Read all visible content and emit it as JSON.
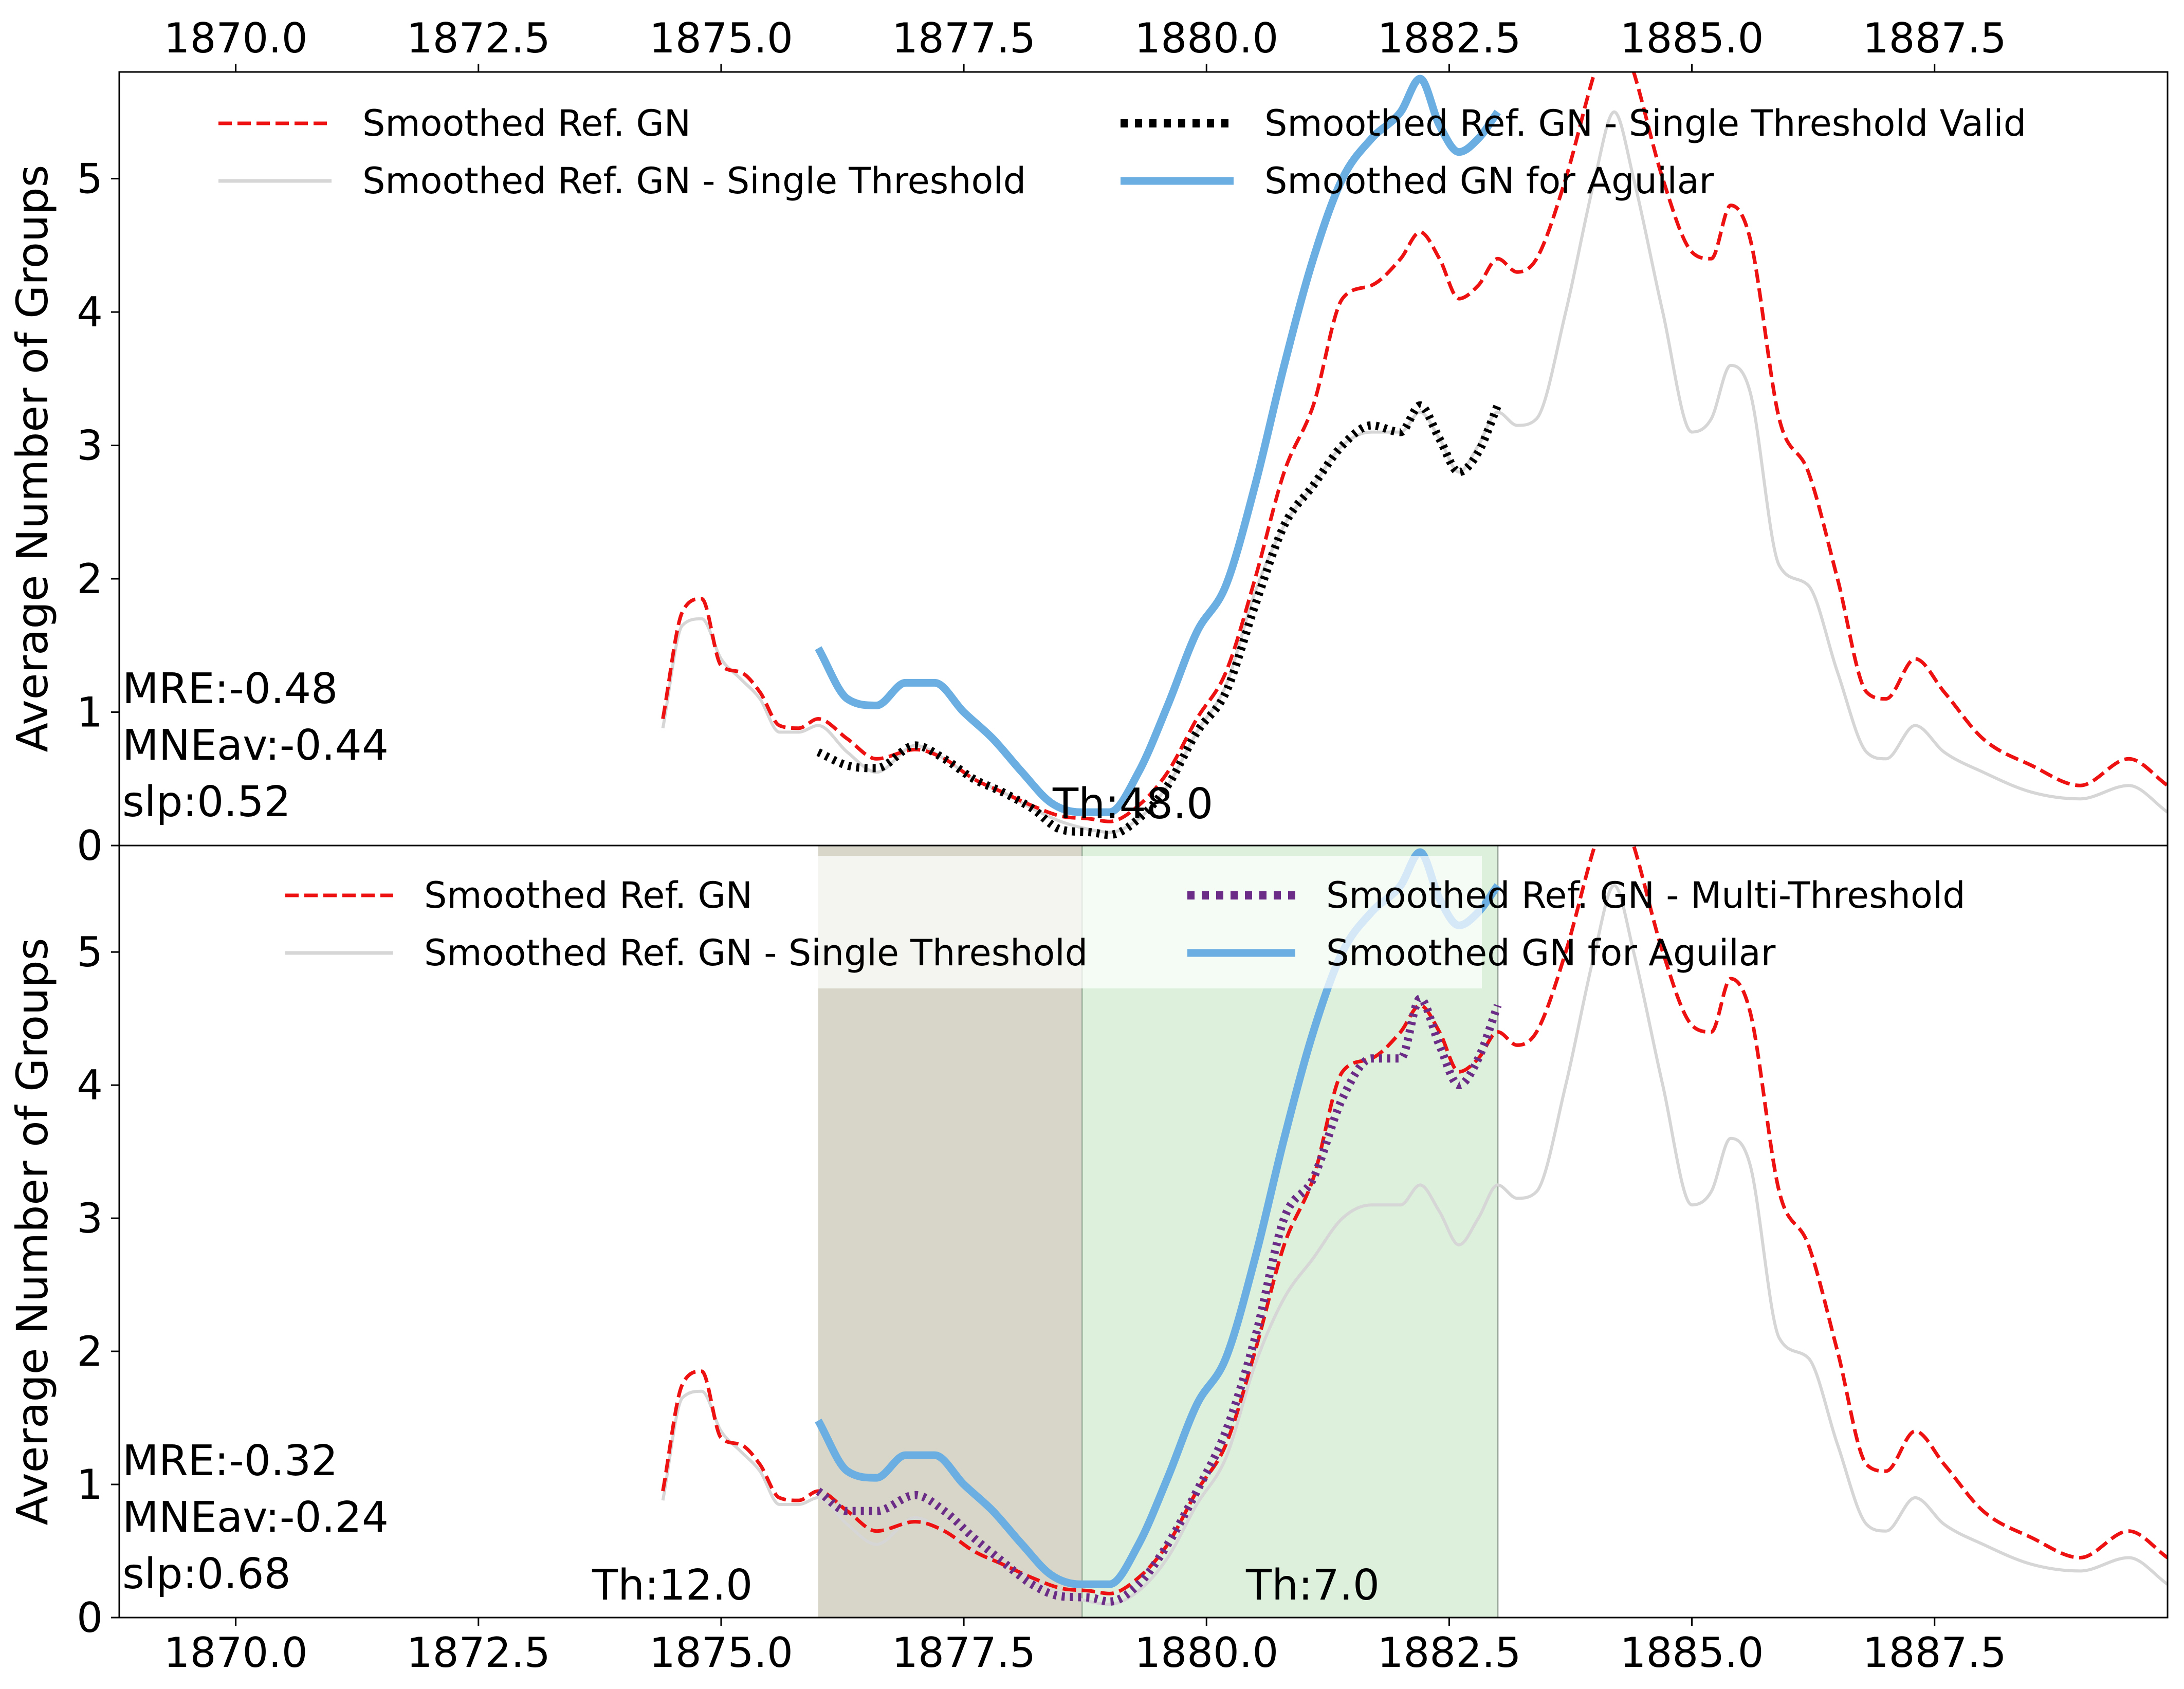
{
  "chart_data": [
    {
      "type": "line",
      "ylabel": "Average Number of Groups",
      "xlim": [
        1868.8,
        1889.9
      ],
      "ylim": [
        0,
        5.8
      ],
      "x_ticks": [
        "1870.0",
        "1872.5",
        "1875.0",
        "1877.5",
        "1880.0",
        "1882.5",
        "1885.0",
        "1887.5"
      ],
      "y_ticks": [
        "0",
        "1",
        "2",
        "3",
        "4",
        "5"
      ],
      "x_tick_position": "top",
      "grid": false,
      "legend": {
        "placement": "top",
        "entries": [
          {
            "label": "Smoothed Ref. GN",
            "color": "#ee1111",
            "style": "dashed"
          },
          {
            "label": "Smoothed Ref. GN - Single Threshold",
            "color": "#d6d6d6",
            "style": "solid"
          },
          {
            "label": "Smoothed Ref. GN - Single Threshold Valid",
            "color": "#000000",
            "style": "dotted"
          },
          {
            "label": "Smoothed GN for Aguilar",
            "color": "#6aaee2",
            "style": "solid"
          }
        ]
      },
      "annotations": [
        {
          "text": "MRE:-0.48"
        },
        {
          "text": "MNEav:-0.44"
        },
        {
          "text": "slp:0.52"
        },
        {
          "text": "Th:48.0",
          "x": 1878.7
        }
      ],
      "shaded_regions": [],
      "series": [
        {
          "name": "Smoothed Ref. GN",
          "color": "#ee1111",
          "style": "dashed",
          "x": [
            1874.4,
            1874.6,
            1874.8,
            1875.0,
            1875.2,
            1875.4,
            1875.6,
            1875.8,
            1876.0,
            1876.3,
            1876.6,
            1877.0,
            1877.3,
            1877.6,
            1877.9,
            1878.2,
            1878.5,
            1878.8,
            1879.0,
            1879.3,
            1879.6,
            1879.9,
            1880.2,
            1880.5,
            1880.8,
            1881.1,
            1881.4,
            1881.7,
            1882.0,
            1882.2,
            1882.4,
            1882.6,
            1882.8,
            1883.0,
            1883.2,
            1883.4,
            1883.7,
            1884.0,
            1884.2,
            1884.4,
            1884.7,
            1885.0,
            1885.2,
            1885.4,
            1885.6,
            1885.9,
            1886.2,
            1886.5,
            1886.8,
            1887.0,
            1887.3,
            1887.6,
            1888.0,
            1888.5,
            1889.0,
            1889.5,
            1889.9
          ],
          "y": [
            0.95,
            1.75,
            1.85,
            1.35,
            1.3,
            1.15,
            0.9,
            0.88,
            0.95,
            0.8,
            0.65,
            0.72,
            0.65,
            0.5,
            0.4,
            0.3,
            0.22,
            0.2,
            0.18,
            0.3,
            0.55,
            0.95,
            1.3,
            2.0,
            2.8,
            3.3,
            4.1,
            4.2,
            4.4,
            4.6,
            4.4,
            4.1,
            4.2,
            4.4,
            4.3,
            4.4,
            5.0,
            5.8,
            6.2,
            5.8,
            5.0,
            4.45,
            4.4,
            4.8,
            4.55,
            3.2,
            2.8,
            2.0,
            1.15,
            1.1,
            1.4,
            1.15,
            0.8,
            0.6,
            0.45,
            0.65,
            0.45
          ]
        },
        {
          "name": "Smoothed Ref. GN - Single Threshold",
          "color": "#d6d6d6",
          "style": "solid",
          "x": [
            1874.4,
            1874.6,
            1874.8,
            1875.0,
            1875.2,
            1875.4,
            1875.6,
            1875.8,
            1876.0,
            1876.3,
            1876.6,
            1877.0,
            1877.3,
            1877.6,
            1877.9,
            1878.2,
            1878.5,
            1878.8,
            1879.0,
            1879.3,
            1879.6,
            1879.9,
            1880.2,
            1880.5,
            1880.8,
            1881.1,
            1881.4,
            1881.7,
            1882.0,
            1882.2,
            1882.4,
            1882.6,
            1882.8,
            1883.0,
            1883.2,
            1883.4,
            1883.7,
            1884.0,
            1884.2,
            1884.4,
            1884.7,
            1885.0,
            1885.2,
            1885.4,
            1885.6,
            1885.9,
            1886.2,
            1886.5,
            1886.8,
            1887.0,
            1887.3,
            1887.6,
            1888.0,
            1888.5,
            1889.0,
            1889.5,
            1889.9
          ],
          "y": [
            0.88,
            1.65,
            1.7,
            1.4,
            1.25,
            1.1,
            0.85,
            0.85,
            0.9,
            0.7,
            0.55,
            0.75,
            0.65,
            0.5,
            0.4,
            0.28,
            0.18,
            0.12,
            0.1,
            0.2,
            0.45,
            0.85,
            1.2,
            1.9,
            2.4,
            2.7,
            3.0,
            3.1,
            3.1,
            3.25,
            3.05,
            2.8,
            3.0,
            3.25,
            3.15,
            3.2,
            4.0,
            5.0,
            5.5,
            5.0,
            4.0,
            3.1,
            3.2,
            3.6,
            3.4,
            2.1,
            1.95,
            1.3,
            0.7,
            0.65,
            0.9,
            0.7,
            0.55,
            0.4,
            0.35,
            0.45,
            0.25
          ]
        },
        {
          "name": "Smoothed Ref. GN - Single Threshold Valid",
          "color": "#000000",
          "style": "dotted",
          "x": [
            1876.0,
            1876.3,
            1876.6,
            1877.0,
            1877.3,
            1877.6,
            1877.9,
            1878.2,
            1878.5,
            1878.8,
            1879.0,
            1879.3,
            1879.6,
            1879.9,
            1880.2,
            1880.5,
            1880.8,
            1881.1,
            1881.4,
            1881.7,
            1882.0,
            1882.2,
            1882.4,
            1882.6,
            1882.8,
            1883.0
          ],
          "y": [
            0.7,
            0.6,
            0.58,
            0.75,
            0.65,
            0.5,
            0.4,
            0.28,
            0.12,
            0.1,
            0.08,
            0.2,
            0.45,
            0.85,
            1.15,
            1.8,
            2.4,
            2.7,
            3.0,
            3.15,
            3.1,
            3.3,
            3.05,
            2.8,
            2.95,
            3.3
          ]
        },
        {
          "name": "Smoothed GN for Aguilar",
          "color": "#6aaee2",
          "style": "solid",
          "x": [
            1876.0,
            1876.3,
            1876.6,
            1876.9,
            1877.2,
            1877.5,
            1877.8,
            1878.1,
            1878.4,
            1878.7,
            1879.0,
            1879.3,
            1879.6,
            1879.9,
            1880.2,
            1880.5,
            1880.8,
            1881.1,
            1881.4,
            1881.7,
            1882.0,
            1882.2,
            1882.4,
            1882.6,
            1882.8,
            1883.0
          ],
          "y": [
            1.48,
            1.1,
            1.05,
            1.22,
            1.22,
            1.0,
            0.8,
            0.55,
            0.32,
            0.25,
            0.25,
            0.55,
            1.05,
            1.6,
            1.95,
            2.7,
            3.6,
            4.4,
            5.0,
            5.3,
            5.5,
            5.75,
            5.4,
            5.2,
            5.3,
            5.5
          ]
        }
      ]
    },
    {
      "type": "line",
      "ylabel": "Average Number of Groups",
      "xlim": [
        1868.8,
        1889.9
      ],
      "ylim": [
        0,
        5.8
      ],
      "x_ticks": [
        "1870.0",
        "1872.5",
        "1875.0",
        "1877.5",
        "1880.0",
        "1882.5",
        "1885.0",
        "1887.5"
      ],
      "y_ticks": [
        "0",
        "1",
        "2",
        "3",
        "4",
        "5"
      ],
      "x_tick_position": "bottom",
      "grid": false,
      "legend": {
        "placement": "top",
        "entries": [
          {
            "label": "Smoothed Ref. GN",
            "color": "#ee1111",
            "style": "dashed"
          },
          {
            "label": "Smoothed Ref. GN - Single Threshold",
            "color": "#d6d6d6",
            "style": "solid"
          },
          {
            "label": "Smoothed Ref. GN - Multi-Threshold",
            "color": "#6a2c86",
            "style": "dotted"
          },
          {
            "label": "Smoothed GN for Aguilar",
            "color": "#6aaee2",
            "style": "solid"
          }
        ]
      },
      "annotations": [
        {
          "text": "MRE:-0.32"
        },
        {
          "text": "MNEav:-0.24"
        },
        {
          "text": "slp:0.68"
        },
        {
          "text": "Th:12.0",
          "x": 1873.3
        },
        {
          "text": "Th:7.0",
          "x": 1881.3
        }
      ],
      "shaded_regions": [
        {
          "x_start": 1876.0,
          "x_end": 1878.72,
          "color": "#b8b49a"
        },
        {
          "x_start": 1878.72,
          "x_end": 1883.0,
          "color": "#bfe3bf"
        }
      ],
      "series": [
        {
          "name": "Smoothed Ref. GN",
          "color": "#ee1111",
          "style": "dashed",
          "x": [
            1874.4,
            1874.6,
            1874.8,
            1875.0,
            1875.2,
            1875.4,
            1875.6,
            1875.8,
            1876.0,
            1876.3,
            1876.6,
            1877.0,
            1877.3,
            1877.6,
            1877.9,
            1878.2,
            1878.5,
            1878.8,
            1879.0,
            1879.3,
            1879.6,
            1879.9,
            1880.2,
            1880.5,
            1880.8,
            1881.1,
            1881.4,
            1881.7,
            1882.0,
            1882.2,
            1882.4,
            1882.6,
            1882.8,
            1883.0,
            1883.2,
            1883.4,
            1883.7,
            1884.0,
            1884.2,
            1884.4,
            1884.7,
            1885.0,
            1885.2,
            1885.4,
            1885.6,
            1885.9,
            1886.2,
            1886.5,
            1886.8,
            1887.0,
            1887.3,
            1887.6,
            1888.0,
            1888.5,
            1889.0,
            1889.5,
            1889.9
          ],
          "y": [
            0.95,
            1.75,
            1.85,
            1.35,
            1.3,
            1.15,
            0.9,
            0.88,
            0.95,
            0.8,
            0.65,
            0.72,
            0.65,
            0.5,
            0.4,
            0.3,
            0.22,
            0.2,
            0.18,
            0.3,
            0.55,
            0.95,
            1.3,
            2.0,
            2.8,
            3.3,
            4.1,
            4.2,
            4.4,
            4.6,
            4.4,
            4.1,
            4.2,
            4.4,
            4.3,
            4.4,
            5.0,
            5.8,
            6.2,
            5.8,
            5.0,
            4.45,
            4.4,
            4.8,
            4.55,
            3.2,
            2.8,
            2.0,
            1.15,
            1.1,
            1.4,
            1.15,
            0.8,
            0.6,
            0.45,
            0.65,
            0.45
          ]
        },
        {
          "name": "Smoothed Ref. GN - Single Threshold",
          "color": "#d6d6d6",
          "style": "solid",
          "x": [
            1874.4,
            1874.6,
            1874.8,
            1875.0,
            1875.2,
            1875.4,
            1875.6,
            1875.8,
            1876.0,
            1876.3,
            1876.6,
            1877.0,
            1877.3,
            1877.6,
            1877.9,
            1878.2,
            1878.5,
            1878.8,
            1879.0,
            1879.3,
            1879.6,
            1879.9,
            1880.2,
            1880.5,
            1880.8,
            1881.1,
            1881.4,
            1881.7,
            1882.0,
            1882.2,
            1882.4,
            1882.6,
            1882.8,
            1883.0,
            1883.2,
            1883.4,
            1883.7,
            1884.0,
            1884.2,
            1884.4,
            1884.7,
            1885.0,
            1885.2,
            1885.4,
            1885.6,
            1885.9,
            1886.2,
            1886.5,
            1886.8,
            1887.0,
            1887.3,
            1887.6,
            1888.0,
            1888.5,
            1889.0,
            1889.5,
            1889.9
          ],
          "y": [
            0.88,
            1.65,
            1.7,
            1.4,
            1.25,
            1.1,
            0.85,
            0.85,
            0.9,
            0.7,
            0.55,
            0.75,
            0.65,
            0.5,
            0.4,
            0.28,
            0.18,
            0.12,
            0.1,
            0.2,
            0.45,
            0.85,
            1.2,
            1.9,
            2.4,
            2.7,
            3.0,
            3.1,
            3.1,
            3.25,
            3.05,
            2.8,
            3.0,
            3.25,
            3.15,
            3.2,
            4.0,
            5.0,
            5.5,
            5.0,
            4.0,
            3.1,
            3.2,
            3.6,
            3.4,
            2.1,
            1.95,
            1.3,
            0.7,
            0.65,
            0.9,
            0.7,
            0.55,
            0.4,
            0.35,
            0.45,
            0.25
          ]
        },
        {
          "name": "Smoothed Ref. GN - Multi-Threshold",
          "color": "#6a2c86",
          "style": "dotted",
          "x": [
            1876.0,
            1876.3,
            1876.6,
            1877.0,
            1877.3,
            1877.6,
            1877.9,
            1878.2,
            1878.5,
            1878.8,
            1879.0,
            1879.3,
            1879.6,
            1879.9,
            1880.2,
            1880.5,
            1880.8,
            1881.1,
            1881.4,
            1881.7,
            1882.0,
            1882.2,
            1882.4,
            1882.6,
            1882.8,
            1883.0
          ],
          "y": [
            0.95,
            0.8,
            0.8,
            0.92,
            0.8,
            0.6,
            0.42,
            0.25,
            0.16,
            0.15,
            0.12,
            0.25,
            0.55,
            0.95,
            1.4,
            2.1,
            3.0,
            3.3,
            3.9,
            4.2,
            4.2,
            4.65,
            4.3,
            4.0,
            4.2,
            4.6
          ]
        },
        {
          "name": "Smoothed GN for Aguilar",
          "color": "#6aaee2",
          "style": "solid",
          "x": [
            1876.0,
            1876.3,
            1876.6,
            1876.9,
            1877.2,
            1877.5,
            1877.8,
            1878.1,
            1878.4,
            1878.7,
            1879.0,
            1879.3,
            1879.6,
            1879.9,
            1880.2,
            1880.5,
            1880.8,
            1881.1,
            1881.4,
            1881.7,
            1882.0,
            1882.2,
            1882.4,
            1882.6,
            1882.8,
            1883.0
          ],
          "y": [
            1.48,
            1.1,
            1.05,
            1.22,
            1.22,
            1.0,
            0.8,
            0.55,
            0.32,
            0.25,
            0.25,
            0.55,
            1.05,
            1.6,
            1.95,
            2.7,
            3.6,
            4.4,
            5.0,
            5.3,
            5.5,
            5.75,
            5.4,
            5.2,
            5.3,
            5.5
          ]
        }
      ]
    }
  ]
}
